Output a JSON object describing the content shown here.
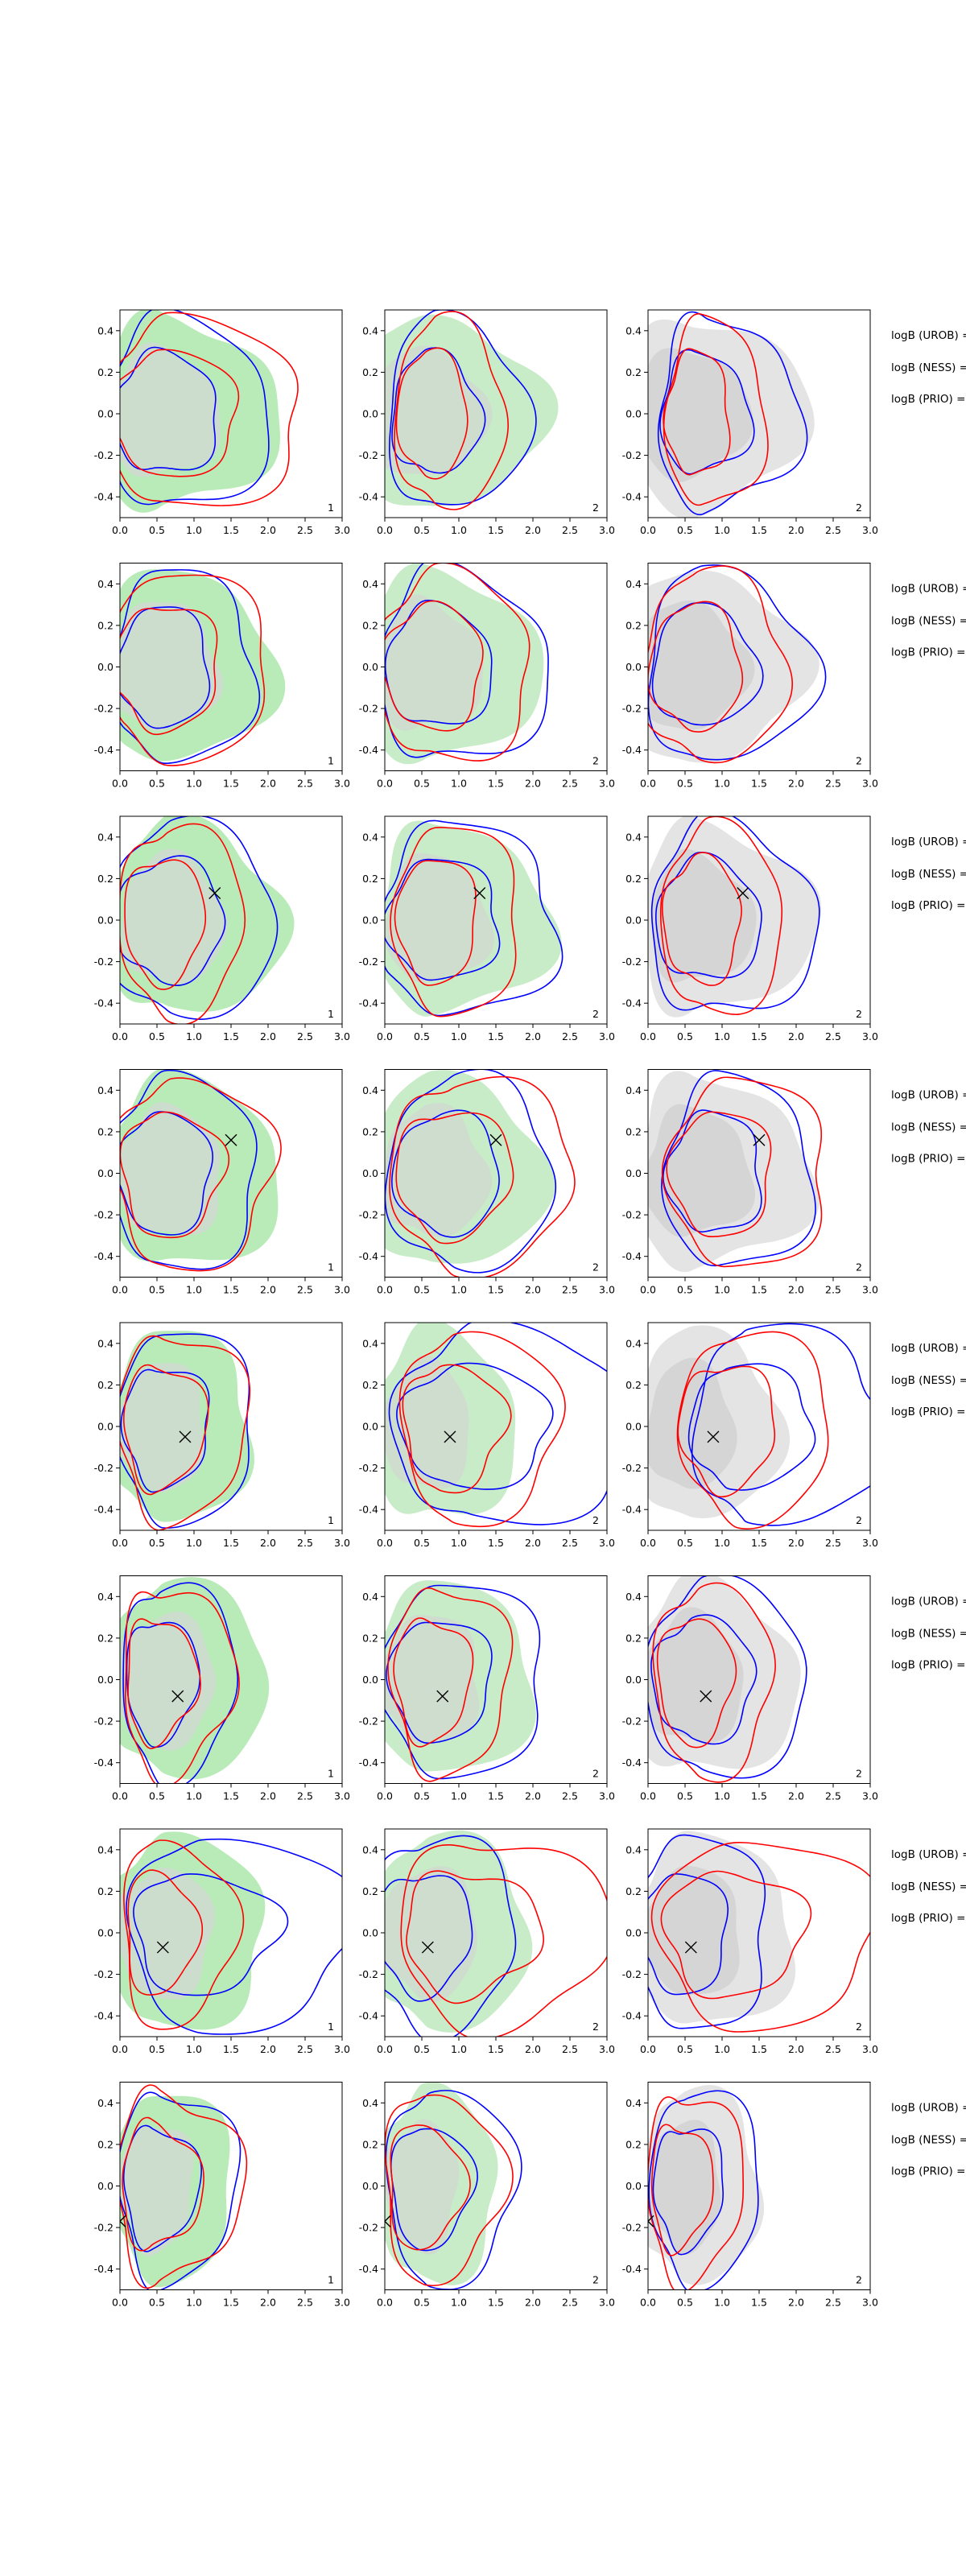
{
  "chart_data": {
    "type": "contour",
    "layout": {
      "rows": 8,
      "columns": 3
    },
    "axes": {
      "xlim": [
        0.0,
        3.0
      ],
      "ylim": [
        -0.5,
        0.5
      ],
      "xticks": [
        "0.0",
        "0.5",
        "1.0",
        "1.5",
        "2.0",
        "2.5",
        "3.0"
      ],
      "yticks": [
        "0.4",
        "0.2",
        "0.0",
        "-0.2",
        "-0.4"
      ],
      "ytick_values": [
        0.4,
        0.2,
        0.0,
        -0.2,
        -0.4
      ],
      "grid": false
    },
    "colors": {
      "reference_fill_col1": "#b9ebb9",
      "reference_fill_col2": "#c8ecc8",
      "reference_fill_col3": "#e4e4e4",
      "inner_fill_col12": "#cfdccf",
      "inner_fill_col3": "#d3d3d3",
      "contour_a": "#0000ff",
      "contour_b": "#ff0000",
      "marker": "#000000"
    },
    "column_labels": [
      "1",
      "2",
      "2"
    ],
    "row_annotations": [
      "logB (UROB) =",
      "logB (NESS) =",
      "logB (PRIO) ="
    ],
    "rows": [
      {
        "marker": null,
        "contours": {
          "fill": {
            "cx": 0.6,
            "rx": 1.55,
            "inner_rx": 0.95
          },
          "blue_1": {
            "cx": 0.6,
            "rx": 1.45,
            "inner_rx": 0.8
          },
          "red_1": {
            "cx": 0.65,
            "rx": 1.85,
            "inner_rx": 0.85
          },
          "blue_2": {
            "cx": 0.7,
            "rx": 1.25,
            "inner_rx": 0.65
          },
          "red_2": {
            "cx": 0.7,
            "rx": 0.95,
            "inner_rx": 0.55
          },
          "blue_3": {
            "cx": 0.8,
            "rx": 1.25,
            "inner_rx": 0.65
          },
          "red_3": {
            "cx": 0.75,
            "rx": 0.85,
            "inner_rx": 0.5
          }
        }
      },
      {
        "marker": null,
        "contours": {
          "fill": {
            "cx": 0.6,
            "rx": 1.5,
            "inner_rx": 0.9
          },
          "blue_1": {
            "cx": 0.6,
            "rx": 1.25,
            "inner_rx": 0.7
          },
          "red_1": {
            "cx": 0.65,
            "rx": 1.4,
            "inner_rx": 0.85
          },
          "blue_2": {
            "cx": 0.7,
            "rx": 1.55,
            "inner_rx": 0.75
          },
          "red_2": {
            "cx": 0.7,
            "rx": 1.3,
            "inner_rx": 0.8
          },
          "blue_3": {
            "cx": 0.75,
            "rx": 1.5,
            "inner_rx": 0.75
          },
          "red_3": {
            "cx": 0.7,
            "rx": 1.2,
            "inner_rx": 0.75
          }
        }
      },
      {
        "marker": {
          "x": 1.28,
          "y": 0.13
        },
        "contours": {
          "fill": {
            "cx": 0.65,
            "rx": 1.6,
            "inner_rx": 0.75
          },
          "blue_1": {
            "cx": 0.7,
            "rx": 1.45,
            "inner_rx": 0.85
          },
          "red_1": {
            "cx": 0.65,
            "rx": 1.05,
            "inner_rx": 0.65
          },
          "blue_2": {
            "cx": 0.8,
            "rx": 1.55,
            "inner_rx": 0.85
          },
          "red_2": {
            "cx": 0.75,
            "rx": 1.1,
            "inner_rx": 0.6
          },
          "blue_3": {
            "cx": 0.85,
            "rx": 1.45,
            "inner_rx": 0.8
          },
          "red_3": {
            "cx": 0.8,
            "rx": 1.05,
            "inner_rx": 0.6
          }
        }
      },
      {
        "marker": {
          "x": 1.5,
          "y": 0.16
        },
        "contours": {
          "fill": {
            "cx": 0.65,
            "rx": 1.55,
            "inner_rx": 0.85
          },
          "blue_1": {
            "cx": 0.6,
            "rx": 1.3,
            "inner_rx": 0.7
          },
          "red_1": {
            "cx": 0.7,
            "rx": 1.4,
            "inner_rx": 0.75
          },
          "blue_2": {
            "cx": 0.95,
            "rx": 1.35,
            "inner_rx": 0.9
          },
          "red_2": {
            "cx": 0.95,
            "rx": 1.65,
            "inner_rx": 0.85
          },
          "blue_3": {
            "cx": 1.0,
            "rx": 1.25,
            "inner_rx": 0.75
          },
          "red_3": {
            "cx": 1.1,
            "rx": 1.35,
            "inner_rx": 0.8
          }
        }
      },
      {
        "marker": {
          "x": 0.88,
          "y": -0.05
        },
        "contours": {
          "fill": {
            "cx": 0.6,
            "rx": 1.2,
            "inner_rx": 0.75
          },
          "blue_1": {
            "cx": 0.6,
            "rx": 1.25,
            "inner_rx": 0.6
          },
          "red_1": {
            "cx": 0.6,
            "rx": 1.15,
            "inner_rx": 0.6
          },
          "blue_2": {
            "cx": 1.2,
            "rx": 2.2,
            "inner_rx": 1.05
          },
          "red_2": {
            "cx": 0.95,
            "rx": 1.45,
            "inner_rx": 0.7
          },
          "blue_3": {
            "cx": 1.35,
            "rx": 2.0,
            "inner_rx": 0.7
          },
          "red_3": {
            "cx": 1.2,
            "rx": 1.3,
            "inner_rx": 0.75
          }
        }
      },
      {
        "marker": {
          "x": 0.78,
          "y": -0.08
        },
        "contours": {
          "fill": {
            "cx": 0.6,
            "rx": 1.45,
            "inner_rx": 0.8
          },
          "blue_1": {
            "cx": 0.55,
            "rx": 1.05,
            "inner_rx": 0.5
          },
          "red_1": {
            "cx": 0.55,
            "rx": 1.0,
            "inner_rx": 0.5
          },
          "blue_2": {
            "cx": 0.75,
            "rx": 1.45,
            "inner_rx": 0.75
          },
          "red_2": {
            "cx": 0.7,
            "rx": 1.0,
            "inner_rx": 0.6
          },
          "blue_3": {
            "cx": 0.75,
            "rx": 1.45,
            "inner_rx": 0.75
          },
          "red_3": {
            "cx": 0.7,
            "rx": 1.0,
            "inner_rx": 0.6
          }
        }
      },
      {
        "marker": {
          "x": 0.58,
          "y": -0.07
        },
        "contours": {
          "fill": {
            "cx": 0.6,
            "rx": 1.4,
            "inner_rx": 0.8
          },
          "blue_1": {
            "cx": 1.1,
            "rx": 2.1,
            "inner_rx": 0.95
          },
          "red_1": {
            "cx": 0.55,
            "rx": 1.0,
            "inner_rx": 0.5
          },
          "blue_2": {
            "cx": 0.55,
            "rx": 1.25,
            "inner_rx": 0.75
          },
          "red_2": {
            "cx": 1.3,
            "rx": 1.75,
            "inner_rx": 1.1
          },
          "blue_3": {
            "cx": 0.5,
            "rx": 1.15,
            "inner_rx": 0.7
          },
          "red_3": {
            "cx": 1.3,
            "rx": 1.8,
            "inner_rx": 1.15
          }
        }
      },
      {
        "marker": {
          "x": 0.0,
          "y": -0.17
        },
        "contours": {
          "fill": {
            "cx": 0.5,
            "rx": 1.05,
            "inner_rx": 0.6
          },
          "blue_1": {
            "cx": 0.55,
            "rx": 1.05,
            "inner_rx": 0.55
          },
          "red_1": {
            "cx": 0.55,
            "rx": 1.1,
            "inner_rx": 0.6
          },
          "blue_2": {
            "cx": 0.6,
            "rx": 1.2,
            "inner_rx": 0.55
          },
          "red_2": {
            "cx": 0.55,
            "rx": 1.05,
            "inner_rx": 0.55
          },
          "blue_3": {
            "cx": 0.55,
            "rx": 1.0,
            "inner_rx": 0.5
          },
          "red_3": {
            "cx": 0.45,
            "rx": 0.85,
            "inner_rx": 0.45
          }
        }
      }
    ]
  }
}
